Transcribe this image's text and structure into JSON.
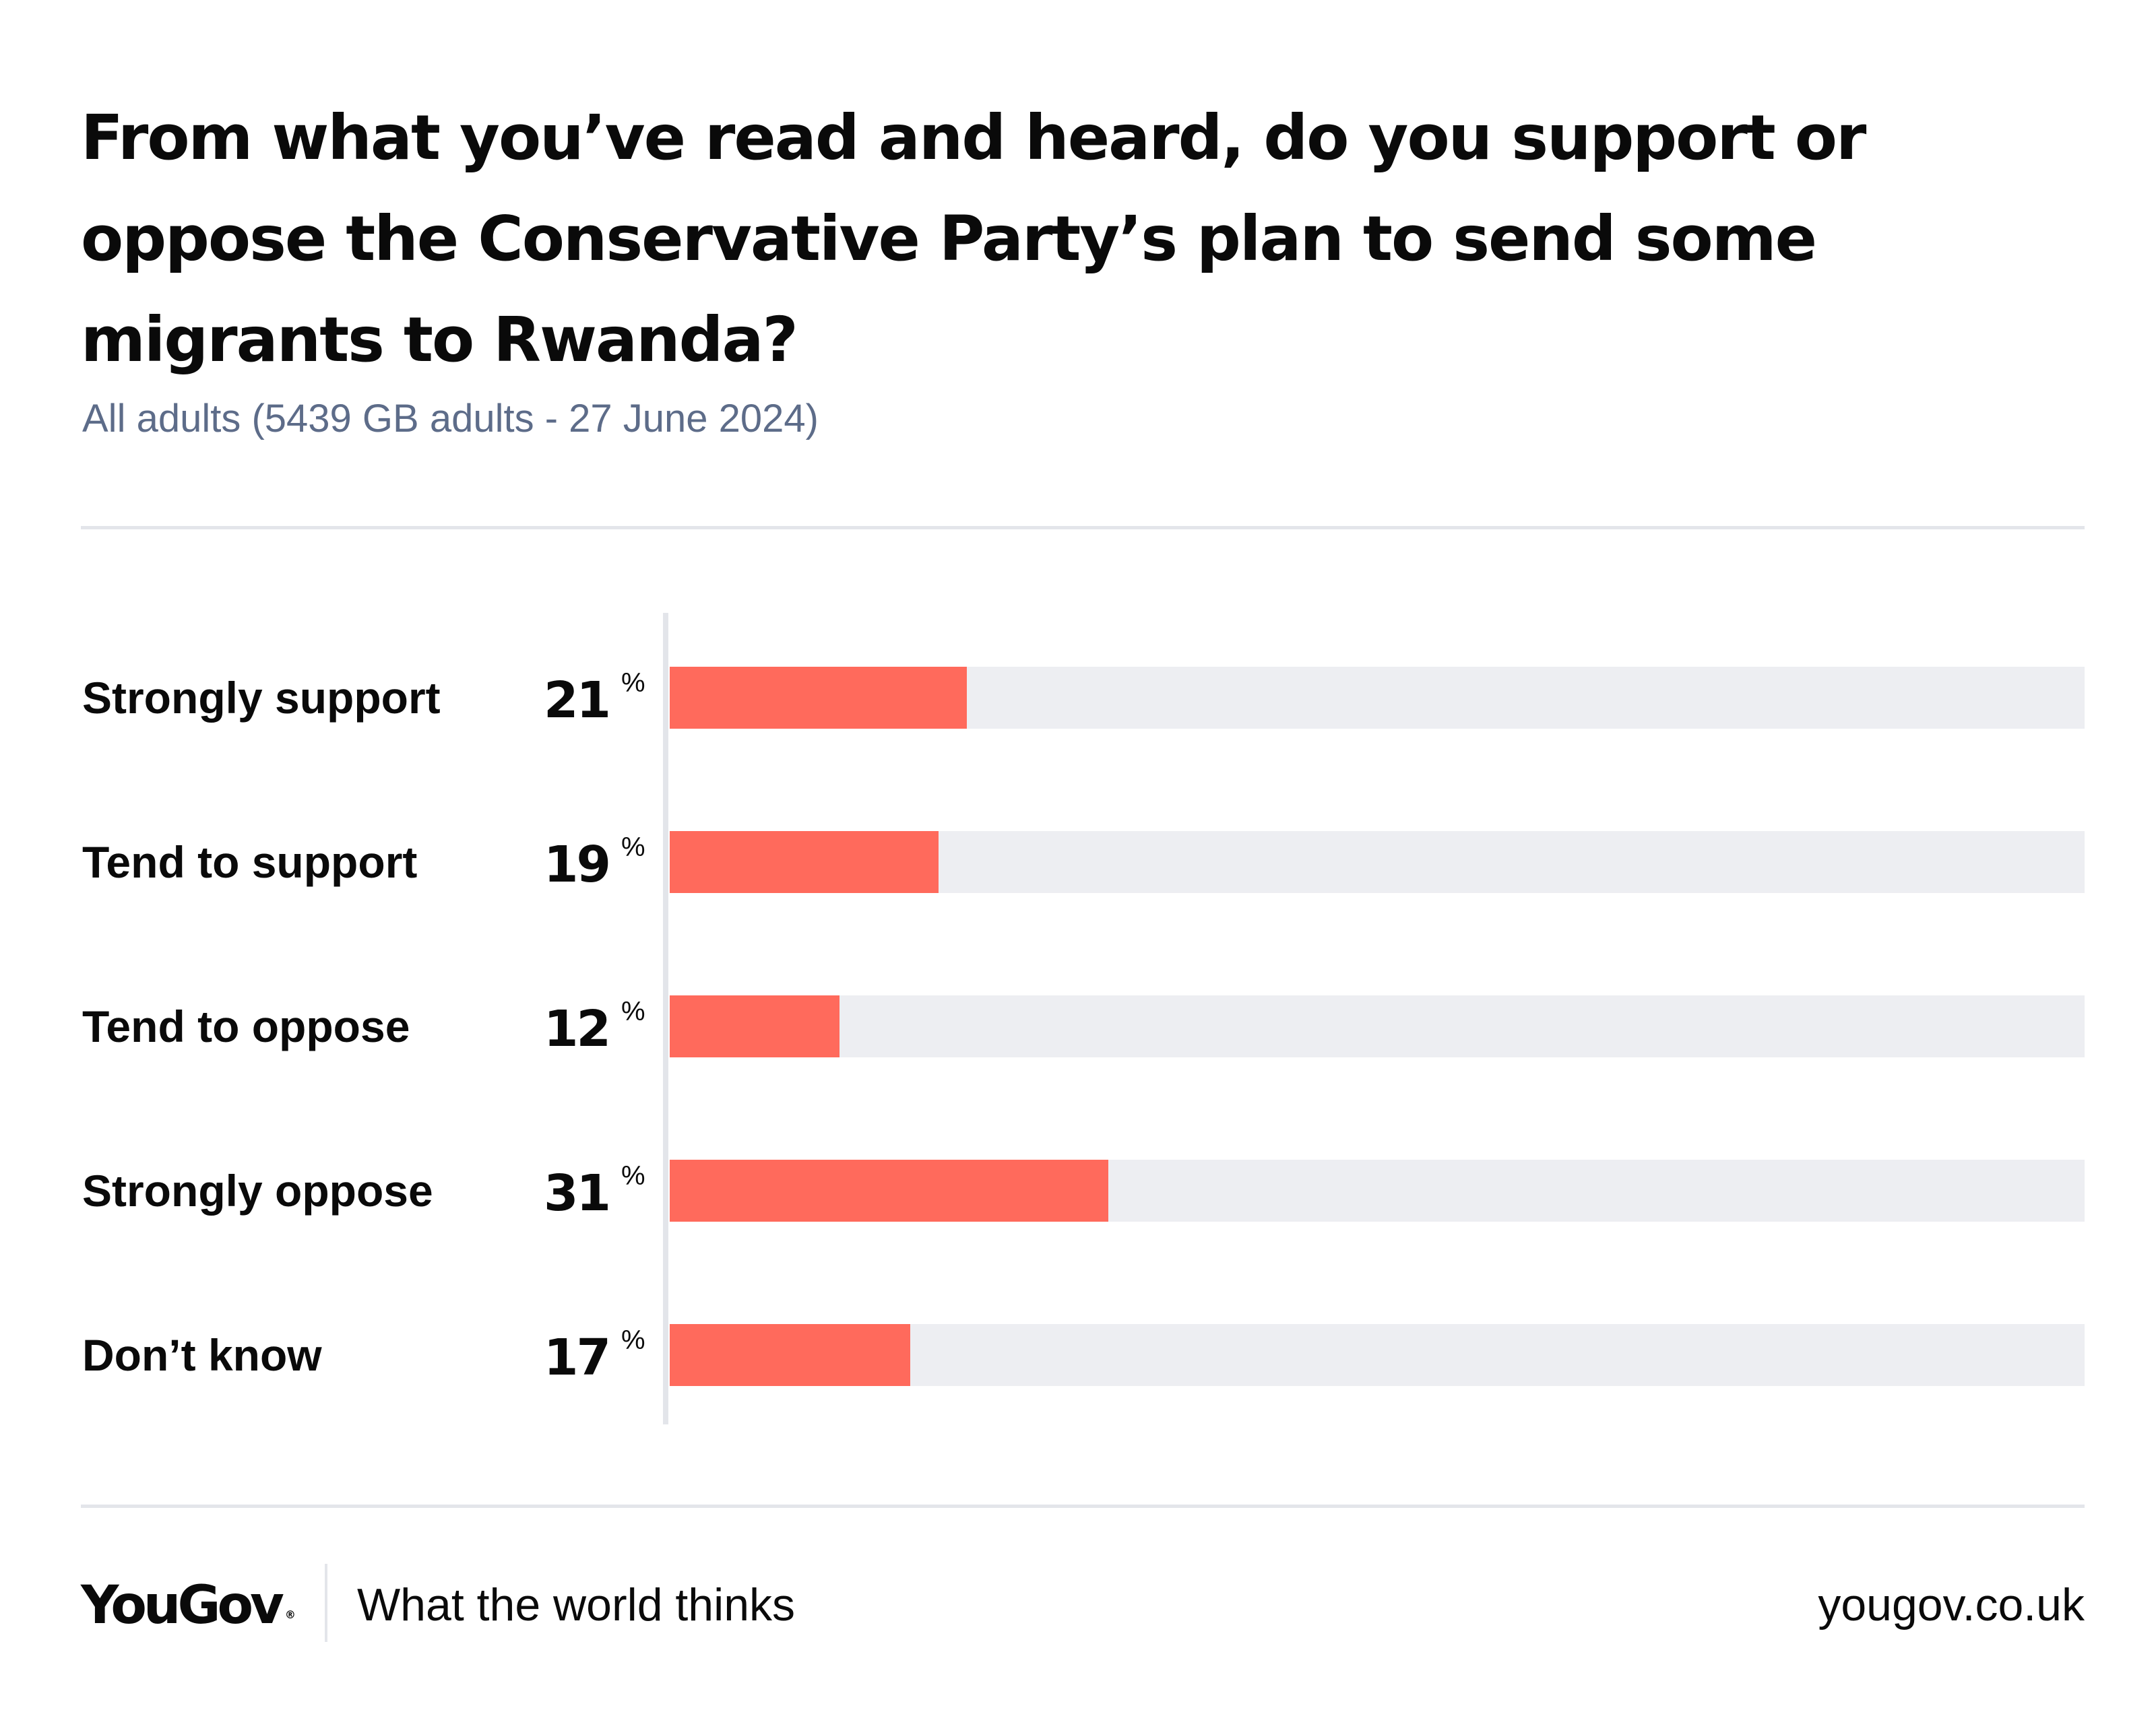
{
  "title": "From what you’ve read and heard, do you support or oppose the Conservative Party’s plan to send some migrants to Rwanda?",
  "subtitle": "All adults (5439 GB adults - 27 June 2024)",
  "colors": {
    "bar": "#ff6a5c",
    "track": "#edeef2",
    "subtitle": "#5d6c89",
    "rule": "#e3e5ea"
  },
  "chart_data": {
    "type": "bar",
    "orientation": "horizontal",
    "categories": [
      "Strongly support",
      "Tend to support",
      "Tend to oppose",
      "Strongly oppose",
      "Don’t know"
    ],
    "values": [
      21,
      19,
      12,
      31,
      17
    ],
    "unit": "%",
    "xlim": [
      0,
      100
    ],
    "grid": false
  },
  "footer": {
    "logo_text": "YouGov",
    "logo_mark": "®",
    "tagline": "What the world thinks",
    "url": "yougov.co.uk"
  }
}
